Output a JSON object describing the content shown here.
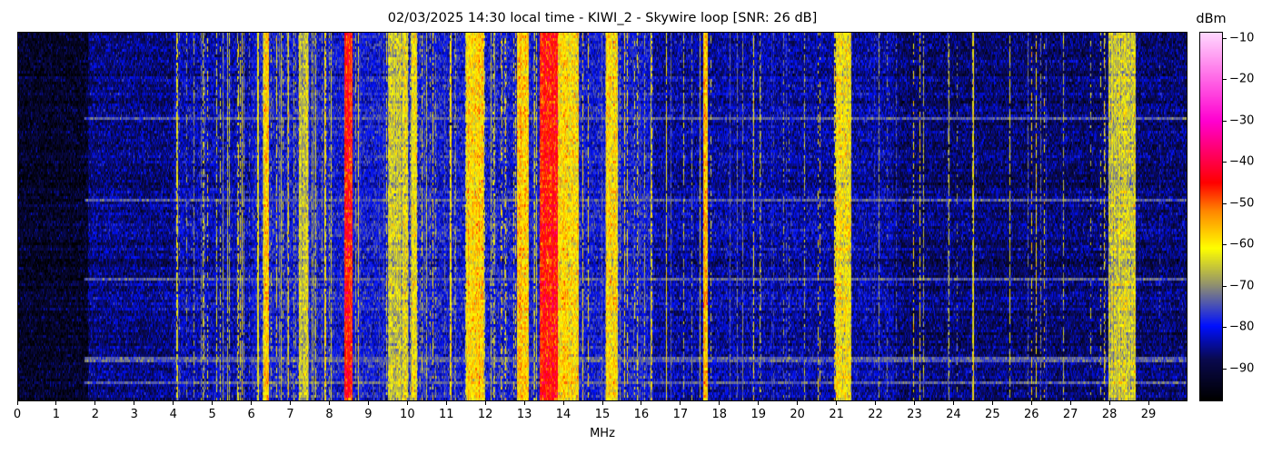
{
  "chart_data": {
    "type": "heatmap",
    "title": "02/03/2025 14:30 local time - KIWI_2 - Skywire loop [SNR: 26 dB]",
    "xlabel": "MHz",
    "xlim": [
      0,
      30
    ],
    "xticks": [
      "0",
      "1",
      "2",
      "3",
      "4",
      "5",
      "6",
      "7",
      "8",
      "9",
      "10",
      "11",
      "12",
      "13",
      "14",
      "15",
      "16",
      "17",
      "18",
      "19",
      "20",
      "21",
      "22",
      "23",
      "24",
      "25",
      "26",
      "27",
      "28",
      "29"
    ],
    "colorbar": {
      "label": "dBm",
      "range": [
        -98,
        -8.5
      ],
      "ticks": [
        "-10",
        "-20",
        "-30",
        "-40",
        "-50",
        "-60",
        "-70",
        "-80",
        "-90"
      ],
      "colormap": [
        {
          "v": -98,
          "c": "#000000"
        },
        {
          "v": -88,
          "c": "#0a0a50"
        },
        {
          "v": -80,
          "c": "#0010ff"
        },
        {
          "v": -70,
          "c": "#909070"
        },
        {
          "v": -61,
          "c": "#ffff00"
        },
        {
          "v": -52,
          "c": "#ff8800"
        },
        {
          "v": -45,
          "c": "#ff0000"
        },
        {
          "v": -30,
          "c": "#ff00d0"
        },
        {
          "v": -8.5,
          "c": "#ffd8ff"
        }
      ]
    },
    "grid": false,
    "noise_floor_dbm": [
      {
        "from": 0,
        "to": 1.8,
        "level": -93
      },
      {
        "from": 1.8,
        "to": 4,
        "level": -86
      },
      {
        "from": 4,
        "to": 6,
        "level": -83
      },
      {
        "from": 6,
        "to": 16.3,
        "level": -80
      },
      {
        "from": 16.3,
        "to": 22.5,
        "level": -84
      },
      {
        "from": 22.5,
        "to": 30,
        "level": -87
      }
    ],
    "active_bands_dbm": [
      {
        "from": 6.3,
        "to": 6.45,
        "level": -58
      },
      {
        "from": 7.2,
        "to": 7.45,
        "level": -66
      },
      {
        "from": 8.38,
        "to": 8.58,
        "level": -46
      },
      {
        "from": 9.5,
        "to": 10.0,
        "level": -66
      },
      {
        "from": 10.1,
        "to": 10.25,
        "level": -62
      },
      {
        "from": 11.5,
        "to": 11.95,
        "level": -58
      },
      {
        "from": 12.8,
        "to": 13.1,
        "level": -58
      },
      {
        "from": 13.4,
        "to": 13.85,
        "level": -45
      },
      {
        "from": 13.85,
        "to": 14.4,
        "level": -60
      },
      {
        "from": 15.1,
        "to": 15.4,
        "level": -60
      },
      {
        "from": 17.6,
        "to": 17.7,
        "level": -56
      },
      {
        "from": 21.0,
        "to": 21.4,
        "level": -62
      },
      {
        "from": 28.0,
        "to": 28.7,
        "level": -66
      }
    ]
  }
}
